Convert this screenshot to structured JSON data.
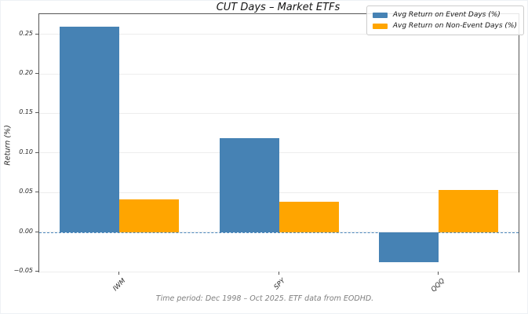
{
  "chart_data": {
    "type": "bar",
    "title": "CUT Days – Market ETFs",
    "ylabel": "Return (%)",
    "xlabel": "",
    "categories": [
      "IWM",
      "SPY",
      "QQQ"
    ],
    "series": [
      {
        "name": "Avg Return on Event Days (%)",
        "color": "#4682B4",
        "values": [
          0.26,
          0.119,
          -0.038
        ]
      },
      {
        "name": "Avg Return on Non-Event Days (%)",
        "color": "#FFA500",
        "values": [
          0.041,
          0.038,
          0.053
        ]
      }
    ],
    "ylim": [
      -0.05,
      0.2755
    ],
    "yticks": [
      -0.05,
      0.0,
      0.05,
      0.1,
      0.15,
      0.2,
      0.25
    ],
    "ytick_labels": [
      "−0.05",
      "0.00",
      "0.05",
      "0.10",
      "0.15",
      "0.20",
      "0.25"
    ],
    "grid": "horizontal",
    "zero_line": {
      "style": "dashed",
      "color": "#4f8bc0",
      "y": 0
    },
    "legend_position": "upper right",
    "caption": "Time period: Dec 1998 – Oct 2025. ETF data from EODHD."
  }
}
